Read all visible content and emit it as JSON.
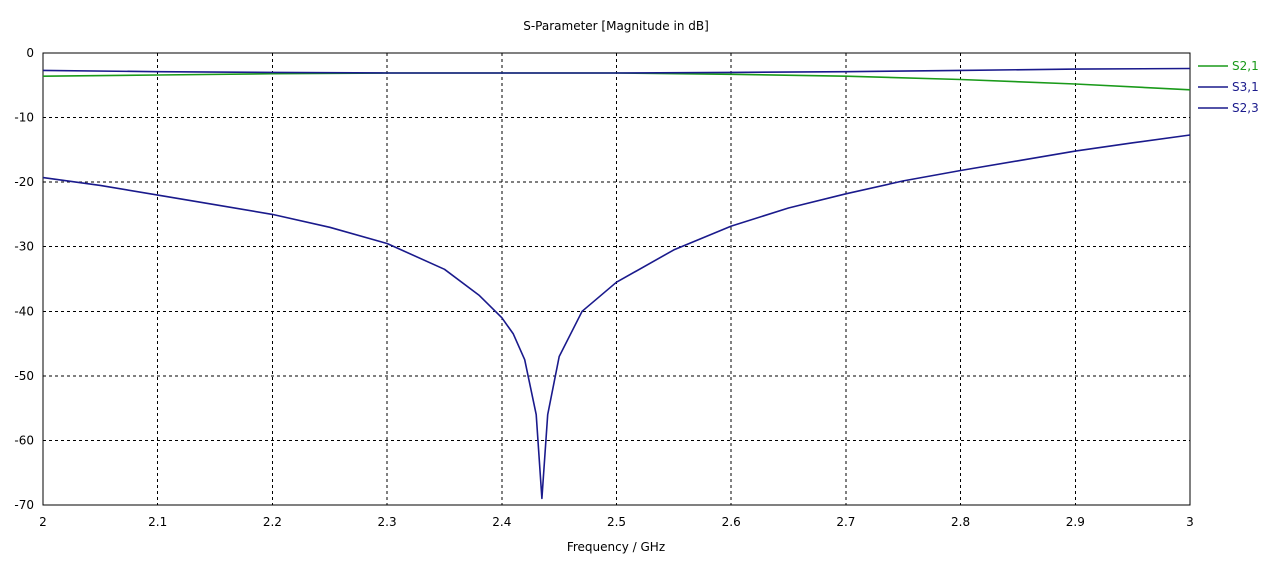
{
  "chart_data": {
    "type": "line",
    "title": "S-Parameter [Magnitude in dB]",
    "xlabel": "Frequency / GHz",
    "ylabel": "",
    "xlim": [
      2,
      3
    ],
    "ylim": [
      -70,
      0
    ],
    "x_ticks": [
      "2",
      "2.1",
      "2.2",
      "2.3",
      "2.4",
      "2.5",
      "2.6",
      "2.7",
      "2.8",
      "2.9",
      "3"
    ],
    "y_ticks": [
      "0",
      "-10",
      "-20",
      "-30",
      "-40",
      "-50",
      "-60",
      "-70"
    ],
    "grid": true,
    "legend_position": "right",
    "series": [
      {
        "name": "S2,1",
        "color": "#1a9a1a",
        "x": [
          2.0,
          2.1,
          2.2,
          2.3,
          2.4,
          2.5,
          2.6,
          2.7,
          2.8,
          2.9,
          3.0
        ],
        "y": [
          -3.6,
          -3.4,
          -3.2,
          -3.1,
          -3.1,
          -3.1,
          -3.3,
          -3.6,
          -4.1,
          -4.8,
          -5.7
        ]
      },
      {
        "name": "S3,1",
        "color": "#1a1a8c",
        "x": [
          2.0,
          2.1,
          2.2,
          2.3,
          2.4,
          2.5,
          2.6,
          2.7,
          2.8,
          2.9,
          3.0
        ],
        "y": [
          -2.7,
          -2.9,
          -3.0,
          -3.1,
          -3.1,
          -3.1,
          -3.0,
          -2.9,
          -2.7,
          -2.5,
          -2.4
        ]
      },
      {
        "name": "S2,3",
        "color": "#1a1a8c",
        "x": [
          2.0,
          2.05,
          2.1,
          2.15,
          2.2,
          2.25,
          2.3,
          2.35,
          2.38,
          2.4,
          2.41,
          2.42,
          2.43,
          2.435,
          2.44,
          2.45,
          2.47,
          2.5,
          2.55,
          2.6,
          2.65,
          2.7,
          2.75,
          2.8,
          2.85,
          2.9,
          2.95,
          3.0
        ],
        "y": [
          -19.3,
          -20.5,
          -22.0,
          -23.5,
          -25.0,
          -27.0,
          -29.5,
          -33.5,
          -37.5,
          -41.0,
          -43.5,
          -47.5,
          -56.0,
          -69.0,
          -56.0,
          -47.0,
          -40.0,
          -35.5,
          -30.5,
          -26.8,
          -24.0,
          -21.8,
          -19.8,
          -18.2,
          -16.7,
          -15.2,
          -13.9,
          -12.7
        ]
      }
    ]
  }
}
